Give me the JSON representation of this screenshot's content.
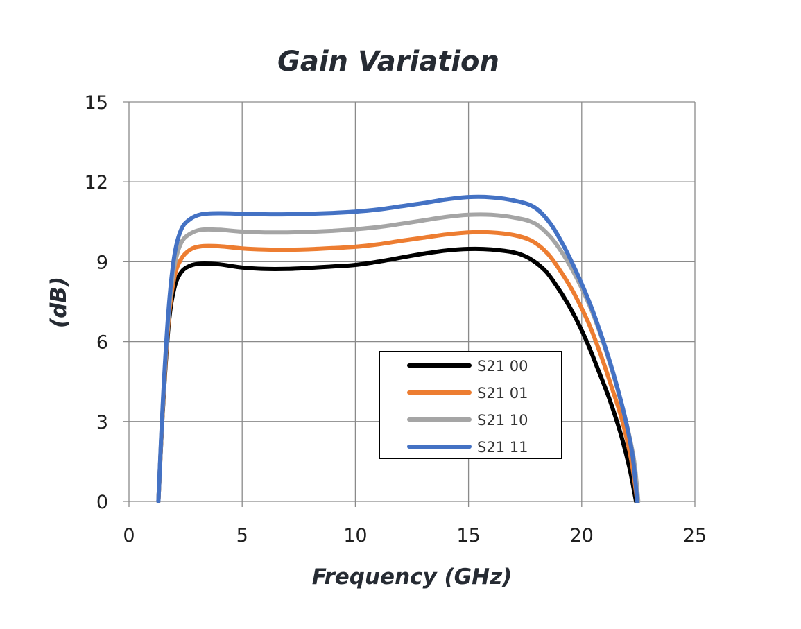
{
  "chart_data": {
    "type": "line",
    "title": "Gain Variation",
    "xlabel": "Frequency (GHz)",
    "ylabel": "(dB)",
    "xlim": [
      0,
      25
    ],
    "ylim": [
      0,
      15
    ],
    "xticks": [
      0,
      5,
      10,
      15,
      20,
      25
    ],
    "yticks": [
      0,
      3,
      6,
      9,
      12,
      15
    ],
    "xtick_labels": [
      "0",
      "5",
      "10",
      "15",
      "20",
      "25"
    ],
    "ytick_labels": [
      "0",
      "3",
      "6",
      "9",
      "12",
      "15"
    ],
    "grid": true,
    "legend_position": "center-right",
    "series": [
      {
        "name": "S21 00",
        "color": "#000000",
        "x": [
          1.3,
          1.5,
          1.75,
          2.0,
          2.3,
          2.7,
          3.2,
          4,
          5,
          6,
          7,
          8,
          9,
          10,
          11,
          12,
          13,
          14,
          15,
          16,
          17,
          17.7,
          18.4,
          19.0,
          19.6,
          20.2,
          20.7,
          21.2,
          21.7,
          22.1,
          22.4
        ],
        "y": [
          0.0,
          3.5,
          6.6,
          8.0,
          8.6,
          8.85,
          8.93,
          8.9,
          8.78,
          8.73,
          8.73,
          8.77,
          8.82,
          8.88,
          9.0,
          9.15,
          9.3,
          9.42,
          9.48,
          9.46,
          9.35,
          9.12,
          8.65,
          7.95,
          7.1,
          6.05,
          5.0,
          3.9,
          2.6,
          1.3,
          0.0
        ]
      },
      {
        "name": "S21 01",
        "color": "#ed7d31",
        "x": [
          1.3,
          1.5,
          1.75,
          2.0,
          2.3,
          2.7,
          3.2,
          4,
          5,
          6,
          7,
          8,
          9,
          10,
          11,
          12,
          13,
          14,
          15,
          16,
          17,
          17.8,
          18.5,
          19.1,
          19.7,
          20.3,
          20.8,
          21.3,
          21.8,
          22.2,
          22.45
        ],
        "y": [
          0.0,
          3.6,
          6.8,
          8.4,
          9.1,
          9.45,
          9.58,
          9.58,
          9.5,
          9.46,
          9.45,
          9.47,
          9.51,
          9.56,
          9.65,
          9.78,
          9.9,
          10.02,
          10.1,
          10.1,
          10.0,
          9.78,
          9.3,
          8.6,
          7.75,
          6.7,
          5.6,
          4.35,
          3.0,
          1.5,
          0.0
        ]
      },
      {
        "name": "S21 10",
        "color": "#a5a5a5",
        "x": [
          1.3,
          1.5,
          1.75,
          2.0,
          2.3,
          2.7,
          3.2,
          4,
          5,
          6,
          7,
          8,
          9,
          10,
          11,
          12,
          13,
          14,
          15,
          16,
          17,
          17.9,
          18.6,
          19.2,
          19.8,
          20.4,
          20.9,
          21.4,
          21.9,
          22.3,
          22.5
        ],
        "y": [
          0.0,
          3.7,
          7.0,
          8.8,
          9.7,
          10.05,
          10.2,
          10.2,
          10.13,
          10.1,
          10.1,
          10.12,
          10.16,
          10.22,
          10.3,
          10.42,
          10.55,
          10.68,
          10.76,
          10.76,
          10.66,
          10.45,
          9.95,
          9.25,
          8.35,
          7.25,
          6.1,
          4.75,
          3.2,
          1.6,
          0.0
        ]
      },
      {
        "name": "S21 11",
        "color": "#4472c4",
        "x": [
          1.3,
          1.5,
          1.75,
          2.0,
          2.3,
          2.7,
          3.2,
          4,
          5,
          6,
          7,
          8,
          9,
          10,
          11,
          12,
          13,
          14,
          15,
          16,
          17,
          17.9,
          18.6,
          19.2,
          19.8,
          20.4,
          20.9,
          21.4,
          21.9,
          22.25,
          22.45
        ],
        "y": [
          0.0,
          3.8,
          7.2,
          9.2,
          10.2,
          10.6,
          10.78,
          10.82,
          10.8,
          10.78,
          10.78,
          10.8,
          10.83,
          10.88,
          10.96,
          11.08,
          11.2,
          11.34,
          11.43,
          11.42,
          11.3,
          11.05,
          10.45,
          9.6,
          8.55,
          7.35,
          6.15,
          4.8,
          3.2,
          1.7,
          0.0
        ]
      }
    ]
  }
}
